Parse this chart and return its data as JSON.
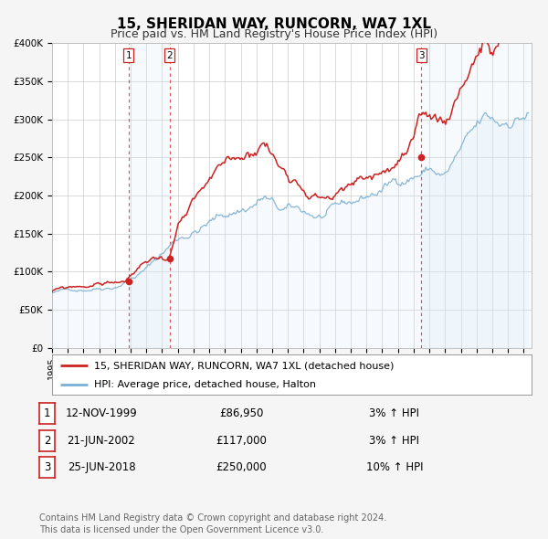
{
  "title": "15, SHERIDAN WAY, RUNCORN, WA7 1XL",
  "subtitle": "Price paid vs. HM Land Registry's House Price Index (HPI)",
  "ylim": [
    0,
    400000
  ],
  "yticks": [
    0,
    50000,
    100000,
    150000,
    200000,
    250000,
    300000,
    350000,
    400000
  ],
  "ytick_labels": [
    "£0",
    "£50K",
    "£100K",
    "£150K",
    "£200K",
    "£250K",
    "£300K",
    "£350K",
    "£400K"
  ],
  "xlim_start": 1995.0,
  "xlim_end": 2025.5,
  "background_color": "#f5f5f5",
  "plot_bg_color": "#ffffff",
  "grid_color": "#cccccc",
  "hpi_line_color": "#7bafd4",
  "hpi_fill_color": "#d6e8f7",
  "price_line_color": "#cc2222",
  "sale_marker_color": "#cc2222",
  "sale_points": [
    {
      "date_num": 1999.87,
      "price": 86950,
      "label": "1"
    },
    {
      "date_num": 2002.48,
      "price": 117000,
      "label": "2"
    },
    {
      "date_num": 2018.49,
      "price": 250000,
      "label": "3"
    }
  ],
  "vline_dates": [
    1999.87,
    2002.48,
    2018.49
  ],
  "vline_color": "#cc2222",
  "legend_price_label": "15, SHERIDAN WAY, RUNCORN, WA7 1XL (detached house)",
  "legend_hpi_label": "HPI: Average price, detached house, Halton",
  "table_rows": [
    {
      "num": "1",
      "date": "12-NOV-1999",
      "price": "£86,950",
      "change": "3% ↑ HPI"
    },
    {
      "num": "2",
      "date": "21-JUN-2002",
      "price": "£117,000",
      "change": "3% ↑ HPI"
    },
    {
      "num": "3",
      "date": "25-JUN-2018",
      "price": "£250,000",
      "change": "10% ↑ HPI"
    }
  ],
  "footer_text": "Contains HM Land Registry data © Crown copyright and database right 2024.\nThis data is licensed under the Open Government Licence v3.0.",
  "title_fontsize": 11,
  "subtitle_fontsize": 9,
  "tick_fontsize": 7.5,
  "legend_fontsize": 8,
  "table_fontsize": 8.5,
  "footer_fontsize": 7
}
